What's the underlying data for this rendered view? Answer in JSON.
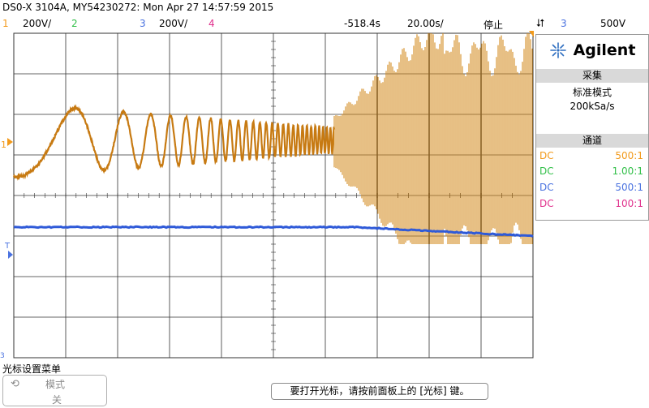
{
  "header": {
    "title": "DS0-X 3104A, MY54230272: Mon Apr 27 14:57:59 2015",
    "ch1_num": "1",
    "ch1_scale": "200V/",
    "ch2_num": "2",
    "ch3_num": "3",
    "ch3_scale": "200V/",
    "ch4_num": "4",
    "delay": "-518.4s",
    "timebase": "20.00s/",
    "run_state": "停止",
    "trig_source": "3",
    "trig_level": "500V"
  },
  "panel": {
    "brand": "Agilent",
    "acquire_header": "采集",
    "acquire_mode": "标准模式",
    "sample_rate": "200kSa/s",
    "channels_header": "通道",
    "channels": [
      {
        "coupling": "DC",
        "probe": "500:1",
        "color": "#f29a1b"
      },
      {
        "coupling": "DC",
        "probe": "1.00:1",
        "color": "#33c04a"
      },
      {
        "coupling": "DC",
        "probe": "500:1",
        "color": "#4a72e0"
      },
      {
        "coupling": "DC",
        "probe": "100:1",
        "color": "#e0308c"
      }
    ]
  },
  "markers": {
    "ch1": "1",
    "trigger": "T",
    "ch3": "3"
  },
  "bottom": {
    "softkey_menu_title": "光标设置菜单",
    "softkey_label_top": "模式",
    "softkey_label_bottom": "关",
    "message": "要打开光标，请按前面板上的 [光标] 键。"
  },
  "colors": {
    "ch1": "#f29a1b",
    "ch2": "#33c04a",
    "ch3": "#4a72e0",
    "ch4": "#e0308c",
    "waveform_ch1": "#c77a12",
    "waveform_ch3": "#2f5ad8"
  },
  "icons": [
    "agilent-spark-icon",
    "trigger-edge-icon",
    "refresh-icon"
  ]
}
